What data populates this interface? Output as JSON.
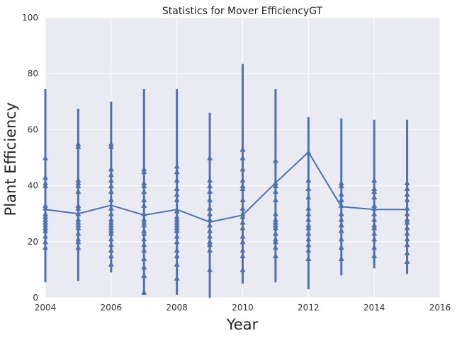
{
  "chart_data": {
    "type": "line",
    "title": "Statistics for Mover EfficiencyGT",
    "xlabel": "Year",
    "ylabel": "Plant Efficiency",
    "xlim": [
      2004,
      2016
    ],
    "ylim": [
      0,
      100
    ],
    "x_ticks": [
      "2004",
      "2006",
      "2008",
      "2010",
      "2012",
      "2014",
      "2016"
    ],
    "y_ticks": [
      "0",
      "20",
      "40",
      "60",
      "80",
      "100"
    ],
    "grid": true,
    "background": "#eaeaf2",
    "line_color": "#4c72b0",
    "series": [
      {
        "x": [
          2004,
          2005,
          2006,
          2007,
          2008,
          2009,
          2010,
          2011,
          2012,
          2013,
          2014,
          2015
        ],
        "values": [
          31.5,
          30,
          33,
          29.5,
          31.5,
          27,
          29.5,
          41,
          52,
          32.5,
          31.5,
          31.5
        ]
      }
    ],
    "spreads": [
      {
        "x": 2004,
        "min": 5.5,
        "max": 74.5,
        "points": [
          18,
          20,
          22,
          24,
          25,
          26,
          27,
          28,
          29,
          30,
          32,
          33,
          40,
          41,
          43,
          50
        ]
      },
      {
        "x": 2005,
        "min": 6,
        "max": 67.5,
        "points": [
          18,
          20,
          21,
          23,
          25,
          26,
          27,
          28,
          30,
          32,
          33,
          38,
          40,
          41,
          42,
          54,
          55
        ]
      },
      {
        "x": 2006,
        "min": 9,
        "max": 70,
        "points": [
          12,
          15,
          17,
          19,
          21,
          23,
          24,
          25,
          26,
          27,
          28,
          30,
          32,
          35,
          38,
          40,
          42,
          44,
          46,
          54,
          55
        ]
      },
      {
        "x": 2007,
        "min": 1,
        "max": 74.5,
        "points": [
          2,
          8,
          11,
          14,
          17,
          19,
          21,
          23,
          24,
          26,
          27,
          28,
          30,
          33,
          35,
          38,
          40,
          41,
          45,
          46
        ]
      },
      {
        "x": 2008,
        "min": 1,
        "max": 74.5,
        "points": [
          7,
          12,
          15,
          17,
          20,
          22,
          24,
          25,
          26,
          27,
          28,
          29,
          31,
          35,
          37,
          39,
          42,
          45,
          47
        ]
      },
      {
        "x": 2009,
        "min": 0,
        "max": 66,
        "points": [
          10,
          17,
          19,
          20,
          22,
          24,
          26,
          28,
          30,
          32,
          35,
          38,
          40,
          42,
          50
        ]
      },
      {
        "x": 2010,
        "min": 5,
        "max": 83.5,
        "points": [
          10,
          15,
          17,
          20,
          22,
          25,
          27,
          29,
          30,
          32,
          35,
          39,
          40,
          42,
          46,
          50,
          53
        ]
      },
      {
        "x": 2011,
        "min": 5.5,
        "max": 74.5,
        "points": [
          15,
          18,
          20,
          21,
          23,
          25,
          26,
          27,
          28,
          30,
          35,
          38,
          40,
          41,
          49
        ]
      },
      {
        "x": 2012,
        "min": 3,
        "max": 64.5,
        "points": [
          14,
          17,
          19,
          21,
          23,
          25,
          26,
          28,
          30,
          32,
          36,
          39,
          42,
          52
        ]
      },
      {
        "x": 2013,
        "min": 8,
        "max": 64,
        "points": [
          14,
          18,
          21,
          24,
          26,
          28,
          30,
          33,
          35,
          37,
          40,
          41
        ]
      },
      {
        "x": 2014,
        "min": 10.5,
        "max": 63.5,
        "points": [
          15,
          18,
          21,
          23,
          25,
          26,
          28,
          30,
          32,
          33,
          36,
          38,
          39,
          42
        ]
      },
      {
        "x": 2015,
        "min": 8.5,
        "max": 63.5,
        "points": [
          13,
          16,
          19,
          21,
          23,
          25,
          27,
          28,
          30,
          32,
          35,
          37,
          39,
          41
        ]
      }
    ]
  }
}
